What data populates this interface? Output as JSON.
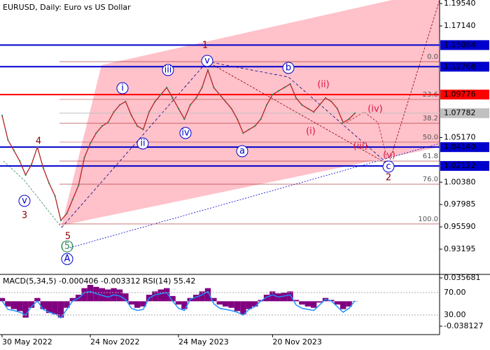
{
  "chart_data": {
    "type": "line",
    "title": "EURUSD, Daily:  Euro vs US Dollar",
    "categories": [
      "30 May 2022",
      null,
      null,
      null,
      null,
      null,
      null,
      null,
      null,
      null,
      null,
      null,
      null,
      null,
      null,
      "24 Nov 2022",
      null,
      null,
      null,
      null,
      null,
      null,
      null,
      null,
      null,
      null,
      null,
      null,
      null,
      null,
      "24 May 2023",
      null,
      null,
      null,
      null,
      null,
      null,
      null,
      null,
      null,
      null,
      null,
      null,
      null,
      null,
      null,
      "20 Nov 2023",
      null,
      null,
      null,
      null,
      null,
      null,
      null,
      null,
      null,
      null,
      null,
      null,
      null,
      null
    ],
    "series": [
      {
        "name": "EURUSD",
        "color": "#b22222",
        "values": [
          1.0753,
          1.049,
          1.0378,
          1.0265,
          1.0115,
          1.0228,
          1.0415,
          1.019,
          1.0025,
          0.989,
          0.9627,
          0.9702,
          0.9852,
          1.0002,
          1.0303,
          1.0453,
          1.0565,
          1.064,
          1.0678,
          1.0791,
          1.0866,
          1.0903,
          1.0753,
          1.064,
          1.0603,
          1.0791,
          1.0903,
          1.0978,
          1.1053,
          1.0941,
          1.0828,
          1.0715,
          1.0866,
          1.0941,
          1.1053,
          1.1241,
          1.1053,
          1.0978,
          1.0903,
          1.0828,
          1.0715,
          1.0565,
          1.0603,
          1.064,
          1.0715,
          1.0866,
          1.0978,
          1.1016,
          1.1053,
          1.1091,
          1.0941,
          1.0866,
          1.0828,
          1.0791,
          1.0866,
          1.0941,
          1.0903,
          1.0828,
          1.0678,
          1.0715,
          1.0778
        ]
      }
    ],
    "ylim": [
      0.9064,
      1.1992
    ],
    "yticks": [
      {
        "value": 1.1954,
        "label": "1.19540"
      },
      {
        "value": 1.1714,
        "label": "1.17140"
      },
      {
        "value": 1.0517,
        "label": "1.05170"
      },
      {
        "value": 1.0038,
        "label": "1.00380"
      },
      {
        "value": 0.97985,
        "label": "0.97985"
      },
      {
        "value": 0.9559,
        "label": "0.95590"
      },
      {
        "value": 0.93195,
        "label": "0.93195"
      }
    ],
    "levels": [
      {
        "value": 1.15084,
        "label": "1.15084",
        "color": "#0000cd"
      },
      {
        "value": 1.12768,
        "label": "1.12768",
        "color": "#0000cd"
      },
      {
        "value": 1.09776,
        "label": "1.09776",
        "color": "#ff0000"
      },
      {
        "value": 1.07782,
        "label": "1.07782",
        "color": "#c0c0c0"
      },
      {
        "value": 1.0414,
        "label": "1.04140",
        "color": "#0000cd"
      },
      {
        "value": 1.02122,
        "label": "1.02122",
        "color": "#0000cd"
      }
    ],
    "fib_levels": [
      {
        "label": "0.0",
        "price": 1.1331
      },
      {
        "label": "23.6",
        "price": 1.0926
      },
      {
        "label": "38.2",
        "price": 1.067
      },
      {
        "label": "50.0",
        "price": 1.0468
      },
      {
        "label": "61.8",
        "price": 1.0265
      },
      {
        "label": "76.0",
        "price": 1.0017
      },
      {
        "label": "100.0",
        "price": 0.959
      }
    ],
    "waves": [
      "1",
      "2",
      "3",
      "4",
      "5",
      "(5)",
      "A",
      "i",
      "ii",
      "iii",
      "iv",
      "v",
      "v",
      "a",
      "b",
      "c",
      "(i)",
      "(ii)",
      "(iii)",
      "(iv)",
      "(v)"
    ],
    "indicator": {
      "title": "MACD(5,34,5) -0.000406 -0.003312 RSI(14) 55.42",
      "macd_color": "#800080",
      "rsi_color": "#1e90ff",
      "macd": [
        0.005,
        -0.008,
        -0.012,
        -0.015,
        -0.025,
        -0.01,
        0.005,
        -0.012,
        -0.018,
        -0.02,
        -0.025,
        -0.01,
        0.005,
        0.01,
        0.02,
        0.025,
        0.022,
        0.02,
        0.018,
        0.02,
        0.018,
        0.012,
        -0.005,
        -0.01,
        -0.008,
        0.01,
        0.015,
        0.018,
        0.02,
        0.008,
        -0.005,
        -0.012,
        0.005,
        0.01,
        0.015,
        0.02,
        0.005,
        -0.005,
        -0.008,
        -0.01,
        -0.015,
        -0.02,
        -0.012,
        -0.008,
        0.002,
        0.01,
        0.015,
        0.012,
        0.013,
        0.015,
        0.002,
        -0.005,
        -0.008,
        -0.01,
        -0.002,
        0.005,
        0.002,
        -0.005,
        -0.012,
        -0.008,
        -0.0004
      ],
      "rsi": [
        55,
        40,
        38,
        35,
        30,
        45,
        55,
        40,
        35,
        32,
        25,
        40,
        55,
        60,
        70,
        72,
        68,
        65,
        62,
        66,
        64,
        58,
        42,
        38,
        40,
        60,
        66,
        68,
        70,
        55,
        42,
        38,
        58,
        62,
        66,
        72,
        50,
        42,
        40,
        38,
        35,
        30,
        40,
        45,
        55,
        62,
        66,
        62,
        64,
        66,
        48,
        42,
        40,
        38,
        48,
        58,
        55,
        45,
        35,
        42,
        55.42
      ],
      "macd_ylim": [
        -0.038127,
        0.035681
      ],
      "macd_ticks": [
        {
          "value": 0.035681,
          "label": "0.035681"
        },
        {
          "value": -0.038127,
          "label": "-0.038127"
        }
      ],
      "rsi_ticks": [
        {
          "value": 70,
          "label": "70.00"
        },
        {
          "value": 30,
          "label": "30.00"
        }
      ]
    }
  }
}
